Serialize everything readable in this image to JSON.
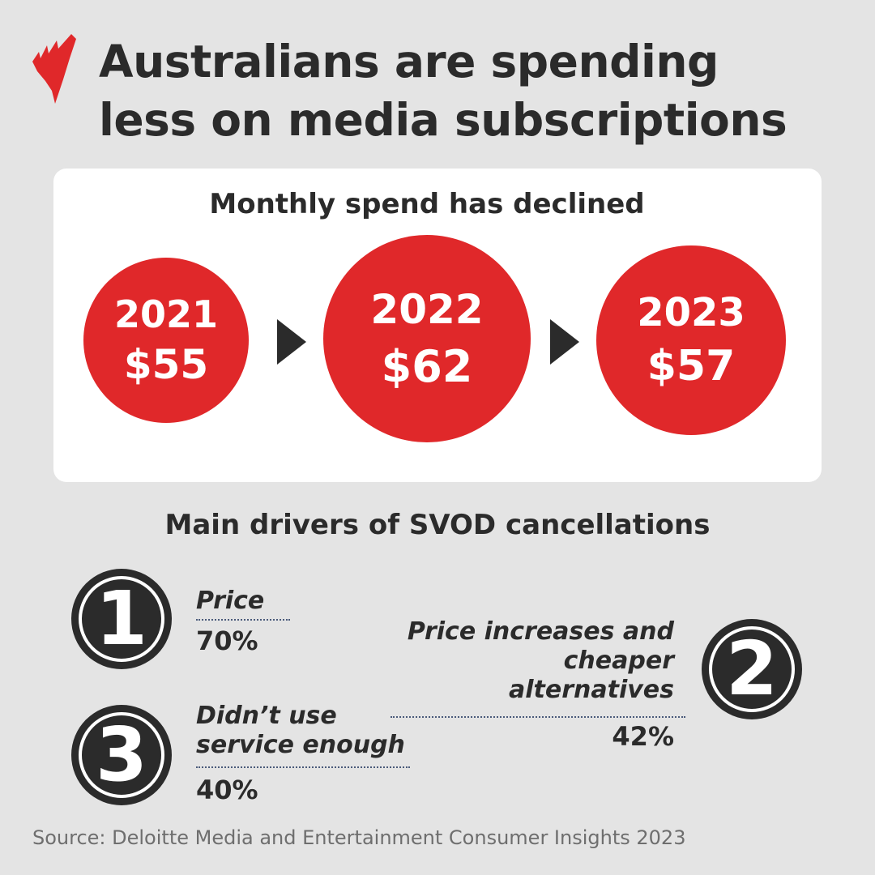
{
  "title_lines": [
    "Australians are spending",
    "less on media subscriptions"
  ],
  "brand_color": "#e0282a",
  "logo": {
    "icon": "sbs-logo"
  },
  "monthly": {
    "title": "Monthly spend has declined",
    "items": [
      {
        "year": "2021",
        "amount": "$55"
      },
      {
        "year": "2022",
        "amount": "$62"
      },
      {
        "year": "2023",
        "amount": "$57"
      }
    ]
  },
  "drivers": {
    "title": "Main drivers of SVOD cancellations",
    "items": [
      {
        "rank": "1",
        "label": "Price",
        "percent": "70%"
      },
      {
        "rank": "2",
        "label_lines": [
          "Price increases and",
          "cheaper alternatives"
        ],
        "percent": "42%"
      },
      {
        "rank": "3",
        "label_lines": [
          "Didn’t use",
          "service enough"
        ],
        "percent": "40%"
      }
    ]
  },
  "source": "Source: Deloitte Media and Entertainment Consumer Insights 2023"
}
